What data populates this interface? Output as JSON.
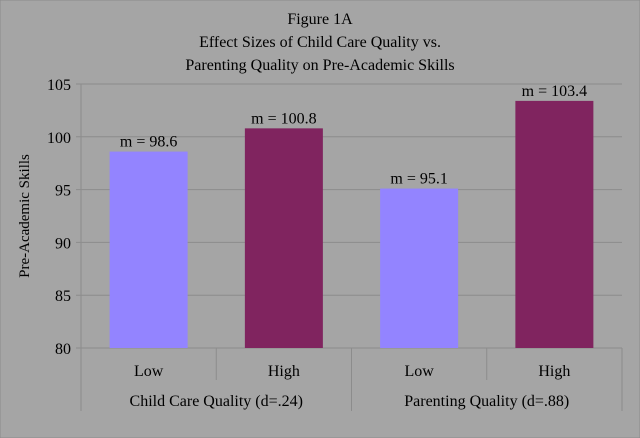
{
  "chart_data": {
    "type": "bar",
    "title": [
      "Figure 1A",
      "Effect Sizes of Child Care Quality vs.",
      "Parenting Quality on Pre-Academic Skills"
    ],
    "ylabel": "Pre-Academic Skills",
    "ylim": [
      80,
      105
    ],
    "yticks": [
      80,
      85,
      90,
      95,
      100,
      105
    ],
    "grid": true,
    "groups": [
      {
        "label": "Child Care Quality (d=.24)",
        "categories": [
          "Low",
          "High"
        ],
        "values": [
          98.6,
          100.8
        ],
        "data_labels": [
          "m = 98.6",
          "m = 100.8"
        ]
      },
      {
        "label": "Parenting Quality (d=.88)",
        "categories": [
          "Low",
          "High"
        ],
        "values": [
          95.1,
          103.4
        ],
        "data_labels": [
          "m = 95.1",
          "m = 103.4"
        ]
      }
    ],
    "colors": {
      "Low": "#9384ff",
      "High": "#80245f",
      "background": "#a5a5a5",
      "grid": "#8c8c8c"
    }
  }
}
